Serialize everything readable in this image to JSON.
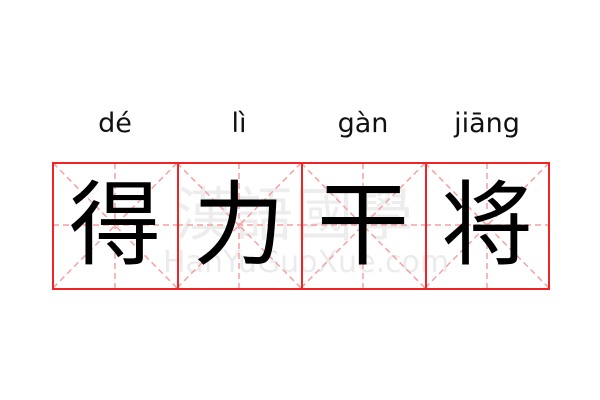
{
  "word": [
    {
      "pinyin": "dé",
      "char": "得"
    },
    {
      "pinyin": "lì",
      "char": "力"
    },
    {
      "pinyin": "gàn",
      "char": "干"
    },
    {
      "pinyin": "jiāng",
      "char": "将"
    }
  ],
  "watermark": {
    "chinese": "漢語國學",
    "latin": "HanYuGuoXue.com"
  },
  "colors": {
    "grid_border": "#f02424",
    "grid_guides": "#f7a0a0",
    "text": "#000000"
  }
}
